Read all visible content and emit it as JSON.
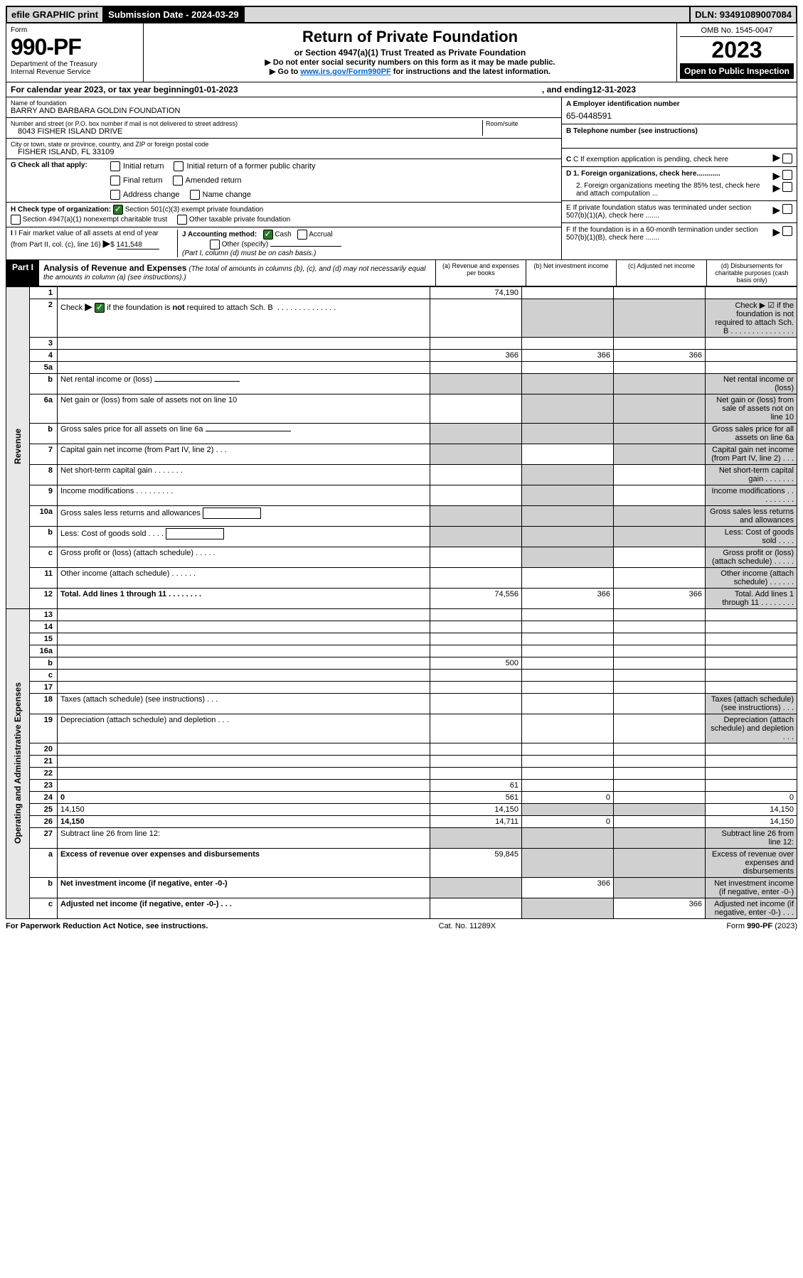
{
  "topbar": {
    "efile": "efile GRAPHIC print",
    "sub_label": "Submission Date - 2024-03-29",
    "dln": "DLN: 93491089007084"
  },
  "header": {
    "form_label": "Form",
    "form_num": "990-PF",
    "dept": "Department of the Treasury",
    "irs": "Internal Revenue Service",
    "title": "Return of Private Foundation",
    "subtitle": "or Section 4947(a)(1) Trust Treated as Private Foundation",
    "note1": "▶ Do not enter social security numbers on this form as it may be made public.",
    "note2_pre": "▶ Go to ",
    "note2_link": "www.irs.gov/Form990PF",
    "note2_post": " for instructions and the latest information.",
    "omb": "OMB No. 1545-0047",
    "year": "2023",
    "open": "Open to Public Inspection"
  },
  "calrow": {
    "pre": "For calendar year 2023, or tax year beginning ",
    "begin": "01-01-2023",
    "mid": " , and ending ",
    "end": "12-31-2023"
  },
  "entity": {
    "name_label": "Name of foundation",
    "name": "BARRY AND BARBARA GOLDIN FOUNDATION",
    "addr_label": "Number and street (or P.O. box number if mail is not delivered to street address)",
    "addr": "8043 FISHER ISLAND DRIVE",
    "room_label": "Room/suite",
    "city_label": "City or town, state or province, country, and ZIP or foreign postal code",
    "city": "FISHER ISLAND, FL  33109",
    "ein_label": "A Employer identification number",
    "ein": "65-0448591",
    "phone_label": "B Telephone number (see instructions)",
    "c_label": "C If exemption application is pending, check here",
    "d1": "D 1. Foreign organizations, check here............",
    "d2": "2. Foreign organizations meeting the 85% test, check here and attach computation ...",
    "e_label": "E  If private foundation status was terminated under section 507(b)(1)(A), check here .......",
    "f_label": "F  If the foundation is in a 60-month termination under section 507(b)(1)(B), check here .......",
    "g_label": "G Check all that apply:",
    "g_opts": [
      "Initial return",
      "Final return",
      "Address change",
      "Initial return of a former public charity",
      "Amended return",
      "Name change"
    ],
    "h_label": "H Check type of organization:",
    "h1": "Section 501(c)(3) exempt private foundation",
    "h2": "Section 4947(a)(1) nonexempt charitable trust",
    "h3": "Other taxable private foundation",
    "i_label": "I Fair market value of all assets at end of year (from Part II, col. (c), line 16)",
    "i_val": "141,548",
    "j_label": "J Accounting method:",
    "j_cash": "Cash",
    "j_accrual": "Accrual",
    "j_other": "Other (specify)",
    "j_note": "(Part I, column (d) must be on cash basis.)"
  },
  "part1": {
    "label": "Part I",
    "title": "Analysis of Revenue and Expenses",
    "note": "(The total of amounts in columns (b), (c), and (d) may not necessarily equal the amounts in column (a) (see instructions).)",
    "col_a": "(a)   Revenue and expenses per books",
    "col_b": "(b)   Net investment income",
    "col_c": "(c)   Adjusted net income",
    "col_d": "(d)   Disbursements for charitable purposes (cash basis only)"
  },
  "side_labels": {
    "revenue": "Revenue",
    "expenses": "Operating and Administrative Expenses"
  },
  "rows": [
    {
      "n": "1",
      "d": "",
      "a": "74,190",
      "b": "",
      "c": ""
    },
    {
      "n": "2",
      "d": "Check ▶ ☑ if the foundation is not required to attach Sch. B   .   .   .   .   .   .   .   .   .   .   .   .   .   .   .",
      "grey_bcd": true
    },
    {
      "n": "3",
      "d": "",
      "a": "",
      "b": "",
      "c": ""
    },
    {
      "n": "4",
      "d": "",
      "a": "366",
      "b": "366",
      "c": "366"
    },
    {
      "n": "5a",
      "d": "",
      "a": "",
      "b": "",
      "c": ""
    },
    {
      "n": "b",
      "d": "Net rental income or (loss)",
      "grey_abcd": true,
      "input_line": true
    },
    {
      "n": "6a",
      "d": "Net gain or (loss) from sale of assets not on line 10",
      "a": "",
      "grey_bcd": true
    },
    {
      "n": "b",
      "d": "Gross sales price for all assets on line 6a",
      "grey_abcd": true,
      "input_line": true
    },
    {
      "n": "7",
      "d": "Capital gain net income (from Part IV, line 2)   .   .   .",
      "grey_a": true,
      "b": "",
      "grey_cd": true
    },
    {
      "n": "8",
      "d": "Net short-term capital gain   .   .   .   .   .   .   .",
      "grey_ab": true,
      "c": "",
      "grey_d": true
    },
    {
      "n": "9",
      "d": "Income modifications   .   .   .   .   .   .   .   .   .",
      "grey_ab": true,
      "c": "",
      "grey_d": true
    },
    {
      "n": "10a",
      "d": "Gross sales less returns and allowances",
      "grey_abcd": true,
      "input_box": true
    },
    {
      "n": "b",
      "d": "Less: Cost of goods sold   .   .   .   .",
      "grey_abcd": true,
      "input_box": true
    },
    {
      "n": "c",
      "d": "Gross profit or (loss) (attach schedule)   .   .   .   .   .",
      "a": "",
      "grey_b": true,
      "c": "",
      "grey_d": true
    },
    {
      "n": "11",
      "d": "Other income (attach schedule)   .   .   .   .   .   .",
      "a": "",
      "b": "",
      "c": "",
      "grey_d": true
    },
    {
      "n": "12",
      "d": "Total. Add lines 1 through 11   .   .   .   .   .   .   .   .",
      "bold": true,
      "a": "74,556",
      "b": "366",
      "c": "366",
      "grey_d": true
    },
    {
      "n": "13",
      "d": "",
      "a": "",
      "b": "",
      "c": ""
    },
    {
      "n": "14",
      "d": "",
      "a": "",
      "b": "",
      "c": ""
    },
    {
      "n": "15",
      "d": "",
      "a": "",
      "b": "",
      "c": ""
    },
    {
      "n": "16a",
      "d": "",
      "a": "",
      "b": "",
      "c": ""
    },
    {
      "n": "b",
      "d": "",
      "a": "500",
      "b": "",
      "c": ""
    },
    {
      "n": "c",
      "d": "",
      "a": "",
      "b": "",
      "c": ""
    },
    {
      "n": "17",
      "d": "",
      "a": "",
      "b": "",
      "c": ""
    },
    {
      "n": "18",
      "d": "Taxes (attach schedule) (see instructions)   .   .   .",
      "a": "",
      "b": "",
      "c": "",
      "grey_d": true
    },
    {
      "n": "19",
      "d": "Depreciation (attach schedule) and depletion   .   .   .",
      "a": "",
      "b": "",
      "c": "",
      "grey_d": true
    },
    {
      "n": "20",
      "d": "",
      "a": "",
      "b": "",
      "c": ""
    },
    {
      "n": "21",
      "d": "",
      "a": "",
      "b": "",
      "c": ""
    },
    {
      "n": "22",
      "d": "",
      "a": "",
      "b": "",
      "c": ""
    },
    {
      "n": "23",
      "d": "",
      "a": "61",
      "b": "",
      "c": ""
    },
    {
      "n": "24",
      "d": "0",
      "bold": true,
      "a": "561",
      "b": "0",
      "c": ""
    },
    {
      "n": "25",
      "d": "14,150",
      "a": "14,150",
      "grey_bc": true
    },
    {
      "n": "26",
      "d": "14,150",
      "bold": true,
      "a": "14,711",
      "b": "0",
      "c": ""
    },
    {
      "n": "27",
      "d": "Subtract line 26 from line 12:",
      "grey_abcd": true
    },
    {
      "n": "a",
      "d": "Excess of revenue over expenses and disbursements",
      "bold": true,
      "a": "59,845",
      "grey_bcd": true
    },
    {
      "n": "b",
      "d": "Net investment income (if negative, enter -0-)",
      "bold": true,
      "grey_a": true,
      "b": "366",
      "grey_cd": true
    },
    {
      "n": "c",
      "d": "Adjusted net income (if negative, enter -0-)   .   .   .",
      "bold": true,
      "grey_ab": true,
      "c": "366",
      "grey_d": true
    }
  ],
  "footer": {
    "left": "For Paperwork Reduction Act Notice, see instructions.",
    "mid": "Cat. No. 11289X",
    "right": "Form 990-PF (2023)"
  }
}
